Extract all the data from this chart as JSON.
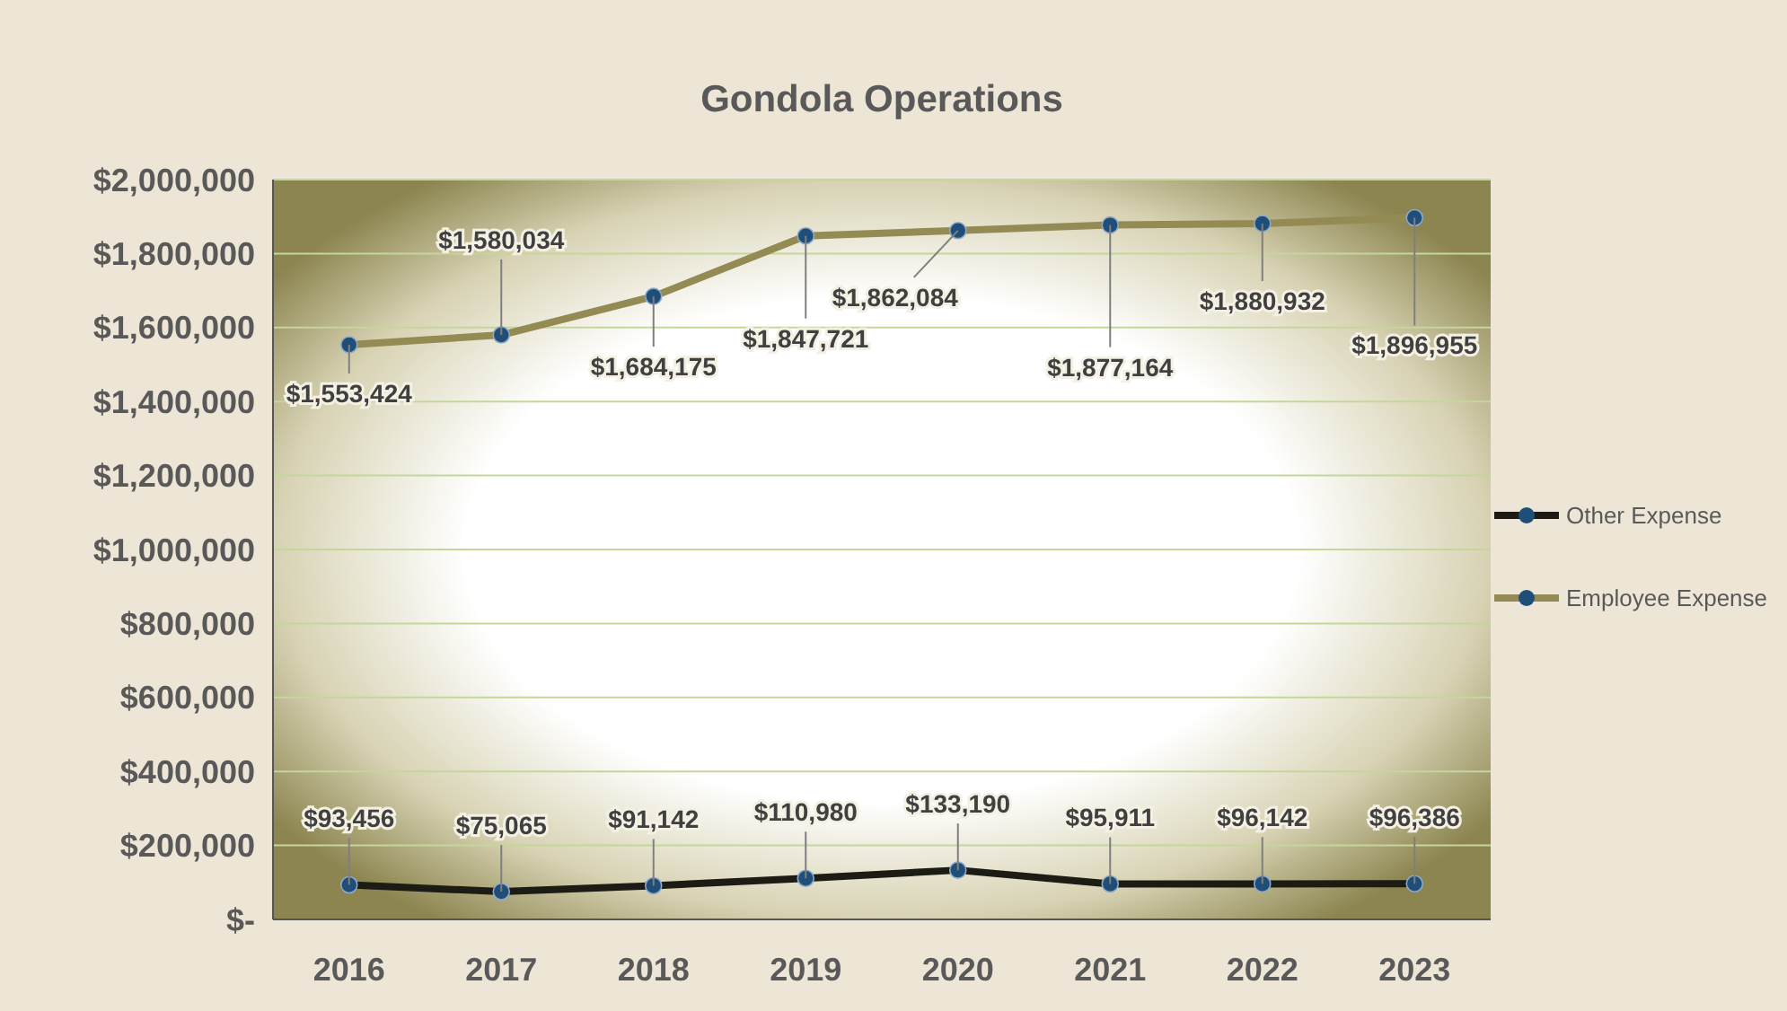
{
  "chart_data": {
    "type": "line",
    "title": "Gondola Operations",
    "categories": [
      "2016",
      "2017",
      "2018",
      "2019",
      "2020",
      "2021",
      "2022",
      "2023"
    ],
    "series": [
      {
        "name": "Other Expense",
        "color": "#1c1c14",
        "values": [
          93456,
          75065,
          91142,
          110980,
          133190,
          95911,
          96142,
          96386
        ],
        "value_labels": [
          "$93,456",
          "$75,065",
          "$91,142",
          "$110,980",
          "$133,190",
          "$95,911",
          "$96,142",
          "$96,386"
        ]
      },
      {
        "name": "Employee Expense",
        "color": "#948a54",
        "values": [
          1553424,
          1580034,
          1684175,
          1847721,
          1862084,
          1877164,
          1880932,
          1896955
        ],
        "value_labels": [
          "$1,553,424",
          "$1,580,034",
          "$1,684,175",
          "$1,847,721",
          "$1,862,084",
          "$1,877,164",
          "$1,880,932",
          "$1,896,955"
        ]
      }
    ],
    "ylim": [
      0,
      2000000
    ],
    "yticks": [
      {
        "value": 0,
        "label": "$-"
      },
      {
        "value": 200000,
        "label": "$200,000"
      },
      {
        "value": 400000,
        "label": "$400,000"
      },
      {
        "value": 600000,
        "label": "$600,000"
      },
      {
        "value": 800000,
        "label": "$800,000"
      },
      {
        "value": 1000000,
        "label": "$1,000,000"
      },
      {
        "value": 1200000,
        "label": "$1,200,000"
      },
      {
        "value": 1400000,
        "label": "$1,400,000"
      },
      {
        "value": 1600000,
        "label": "$1,600,000"
      },
      {
        "value": 1800000,
        "label": "$1,800,000"
      },
      {
        "value": 2000000,
        "label": "$2,000,000"
      }
    ],
    "grid": "y",
    "legend": "right",
    "marker": "circle",
    "line_style": "solid"
  }
}
